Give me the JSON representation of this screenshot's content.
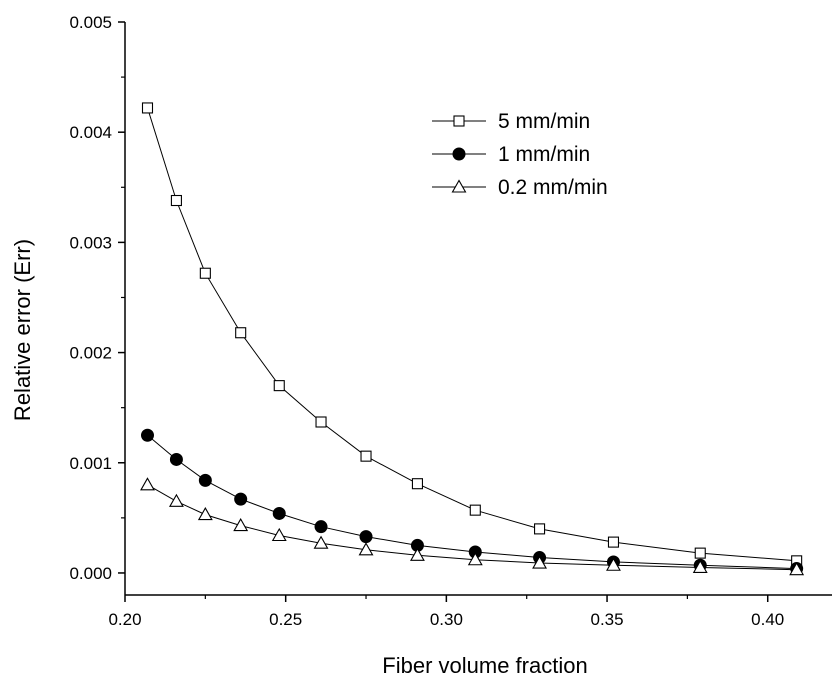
{
  "chart_data": {
    "type": "line",
    "xlabel": "Fiber volume fraction",
    "ylabel": "Relative error (Err)",
    "xlim": [
      0.2,
      0.42
    ],
    "ylim": [
      -0.0002,
      0.005
    ],
    "x_ticks": [
      "0.20",
      "0.25",
      "0.30",
      "0.35",
      "0.40"
    ],
    "y_ticks": [
      "0.000",
      "0.001",
      "0.002",
      "0.003",
      "0.004",
      "0.005"
    ],
    "legend_position": "top-right",
    "grid": false,
    "series": [
      {
        "name": "5 mm/min",
        "marker": "open-square",
        "points": [
          [
            0.207,
            0.00422
          ],
          [
            0.216,
            0.00338
          ],
          [
            0.225,
            0.00272
          ],
          [
            0.236,
            0.00218
          ],
          [
            0.248,
            0.0017
          ],
          [
            0.261,
            0.00137
          ],
          [
            0.275,
            0.00106
          ],
          [
            0.291,
            0.00081
          ],
          [
            0.309,
            0.00057
          ],
          [
            0.329,
            0.0004
          ],
          [
            0.352,
            0.00028
          ],
          [
            0.379,
            0.00018
          ],
          [
            0.409,
            0.00011
          ]
        ]
      },
      {
        "name": "1 mm/min",
        "marker": "filled-circle",
        "points": [
          [
            0.207,
            0.00125
          ],
          [
            0.216,
            0.00103
          ],
          [
            0.225,
            0.00084
          ],
          [
            0.236,
            0.00067
          ],
          [
            0.248,
            0.00054
          ],
          [
            0.261,
            0.00042
          ],
          [
            0.275,
            0.00033
          ],
          [
            0.291,
            0.00025
          ],
          [
            0.309,
            0.00019
          ],
          [
            0.329,
            0.00014
          ],
          [
            0.352,
            0.0001
          ],
          [
            0.379,
            7e-05
          ],
          [
            0.409,
            4e-05
          ]
        ]
      },
      {
        "name": "0.2 mm/min",
        "marker": "open-triangle",
        "points": [
          [
            0.207,
            0.0008
          ],
          [
            0.216,
            0.00065
          ],
          [
            0.225,
            0.00053
          ],
          [
            0.236,
            0.00043
          ],
          [
            0.248,
            0.00034
          ],
          [
            0.261,
            0.00027
          ],
          [
            0.275,
            0.00021
          ],
          [
            0.291,
            0.00016
          ],
          [
            0.309,
            0.00012
          ],
          [
            0.329,
            9e-05
          ],
          [
            0.352,
            7e-05
          ],
          [
            0.379,
            5e-05
          ],
          [
            0.409,
            3e-05
          ]
        ]
      }
    ]
  }
}
